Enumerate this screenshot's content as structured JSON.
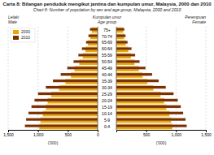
{
  "chart_data": [
    {
      "type": "bar",
      "orientation": "horizontal",
      "title": "Carta 8: Bilangan penduduk mengikut jantina dan kumpulan umur, Malaysia, 2000 dan 2010",
      "subtitle": "Chart 8: Number of population by sex and age group, Malaysia, 2000 and 2010",
      "ylabel": "Kumpulan umur\nAge group",
      "xlabel": "('000)",
      "annotations": [
        "Lelaki\nMale"
      ],
      "categories": [
        "0-4",
        "5-9",
        "10-14",
        "15-19",
        "20-24",
        "25-29",
        "30-34",
        "35-39",
        "40-44",
        "45-49",
        "50-54",
        "55-59",
        "60-64",
        "65-69",
        "70-74",
        "75+"
      ],
      "series": [
        {
          "name": "2000",
          "color": "#E8A800",
          "values": [
            980,
            960,
            920,
            870,
            840,
            780,
            650,
            540,
            450,
            390,
            310,
            250,
            205,
            165,
            125,
            100
          ]
        },
        {
          "name": "2010",
          "color": "#7B3000",
          "values": [
            1220,
            1200,
            1160,
            1110,
            1060,
            1000,
            870,
            750,
            620,
            510,
            405,
            325,
            265,
            195,
            155,
            130
          ]
        }
      ],
      "xlim": [
        0,
        1500
      ],
      "xticks": [
        {
          "value": 1500,
          "label": "1,500"
        },
        {
          "value": 1000,
          "label": "1,000"
        },
        500,
        0
      ],
      "grid": true,
      "legend": "upper left"
    },
    {
      "type": "bar",
      "orientation": "horizontal",
      "xlabel": "('000)",
      "annotations": [
        "Perempuan\nFemale"
      ],
      "categories": [
        null,
        null,
        null,
        null,
        null,
        null,
        null,
        null,
        null,
        null,
        null,
        null,
        null,
        null,
        null,
        null
      ],
      "series": [
        {
          "color": "#E8A800",
          "values": [
            940,
            920,
            890,
            840,
            800,
            740,
            620,
            520,
            440,
            380,
            305,
            245,
            200,
            160,
            130,
            115
          ]
        },
        {
          "color": "#7B3000",
          "values": [
            1180,
            1160,
            1120,
            1080,
            1030,
            960,
            830,
            710,
            600,
            490,
            390,
            315,
            255,
            190,
            155,
            135
          ]
        }
      ],
      "xlim": [
        0,
        1500
      ],
      "xticks": [
        500,
        {
          "value": 1000,
          "label": "1,000"
        },
        {
          "value": 1500,
          "label": "1,500"
        }
      ],
      "grid": true
    }
  ]
}
